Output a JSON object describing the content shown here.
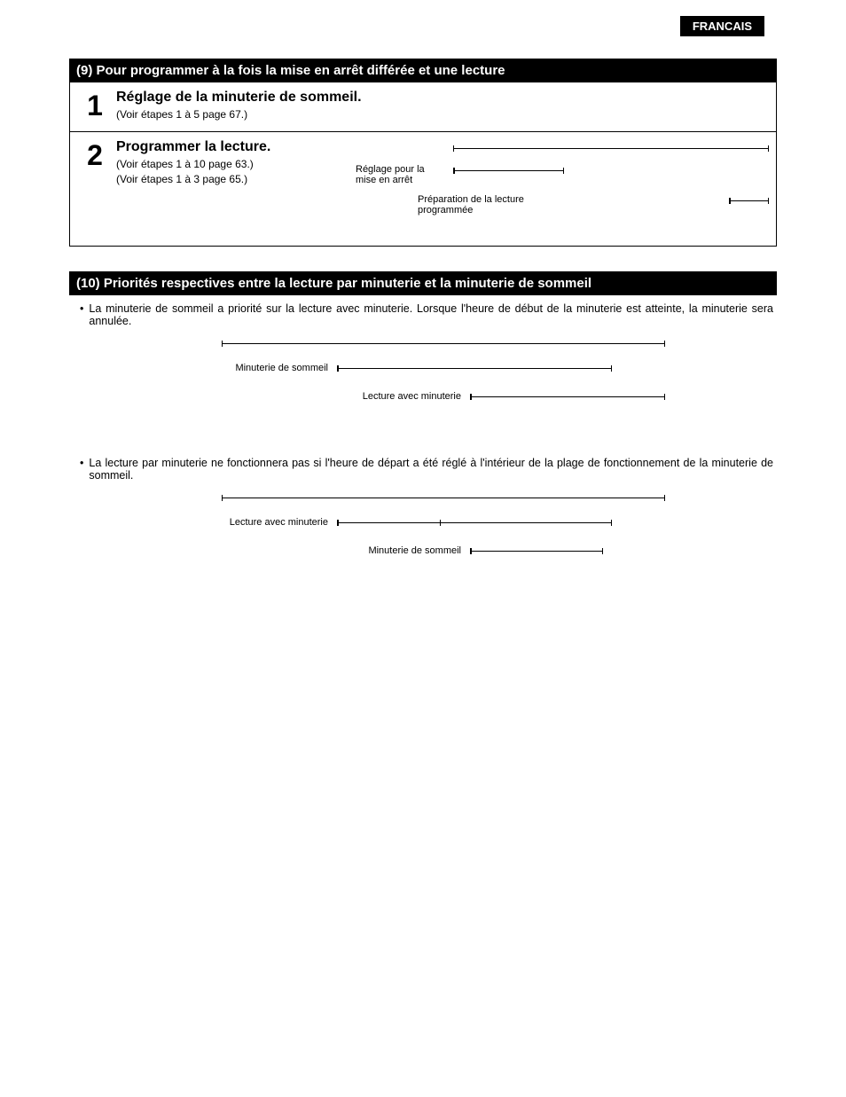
{
  "language_tab": "FRANCAIS",
  "section9": {
    "header": "(9) Pour programmer à la fois la mise en arrêt différée et une lecture",
    "step1": {
      "num": "1",
      "title": "Réglage de la minuterie de sommeil.",
      "sub": "(Voir étapes 1 à 5 page 67.)"
    },
    "step2": {
      "num": "2",
      "title": "Programmer la lecture.",
      "sub1": "(Voir étapes 1 à 10 page 63.)",
      "sub2": "(Voir étapes 1 à 3 page 65.)",
      "tl_label1": "Réglage pour la mise en arrêt",
      "tl_label2": "Préparation de la lecture programmée"
    }
  },
  "section10": {
    "header": "(10) Priorités respectives entre la lecture par minuterie et la minuterie de sommeil",
    "bullet1": "La minuterie de sommeil a priorité sur la lecture avec minuterie. Lorsque l'heure de début de la minuterie est atteinte, la minuterie sera annulée.",
    "diagram1": {
      "labelA": "Minuterie de sommeil",
      "labelB": "Lecture avec minuterie"
    },
    "bullet2": "La lecture par minuterie ne fonctionnera pas si l'heure de départ a été réglé à l'intérieur de la plage de fonctionnement de la minuterie de sommeil.",
    "diagram2": {
      "labelA": "Lecture avec minuterie",
      "labelB": "Minuterie de sommeil"
    }
  },
  "colors": {
    "black": "#000000",
    "white": "#ffffff"
  }
}
